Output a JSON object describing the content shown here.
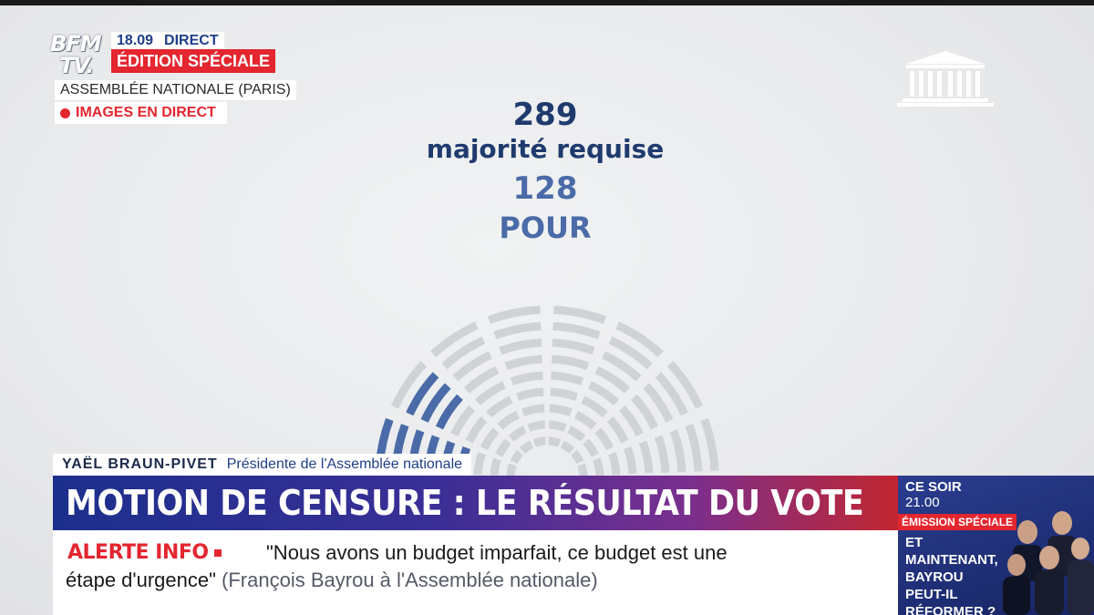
{
  "channel": {
    "logo_line1": "BFM",
    "logo_line2": "TV."
  },
  "status": {
    "time": "18.09",
    "direct": "DIRECT",
    "edition": "ÉDITION SPÉCIALE"
  },
  "location": "ASSEMBLÉE NATIONALE (PARIS)",
  "live_label": "IMAGES EN DIRECT",
  "result": {
    "majority_number": "289",
    "majority_label": "majorité requise",
    "pour_number": "128",
    "pour_label": "POUR"
  },
  "speaker": {
    "name": "YAËL BRAUN-PIVET",
    "role": "Présidente de l'Assemblée nationale"
  },
  "headline": "MOTION DE CENSURE : LE RÉSULTAT DU VOTE",
  "ticker": {
    "alert": "ALERTE INFO",
    "quote_line1": "\"Nous avons un budget imparfait, ce budget est une",
    "quote_line2": "étape d'urgence\"",
    "source": "(François Bayrou à l'Assemblée nationale)"
  },
  "promo": {
    "when": "CE SOIR",
    "time": "21.00",
    "tag": "ÉMISSION SPÉCIALE",
    "title": "ET MAINTENANT, BAYROU PEUT-IL RÉFORMER ?"
  },
  "colors": {
    "accent_red": "#e3262f",
    "navy": "#1f3b6e",
    "pour_blue": "#4a6ba7",
    "seat_grey": "#cfd2d6"
  }
}
